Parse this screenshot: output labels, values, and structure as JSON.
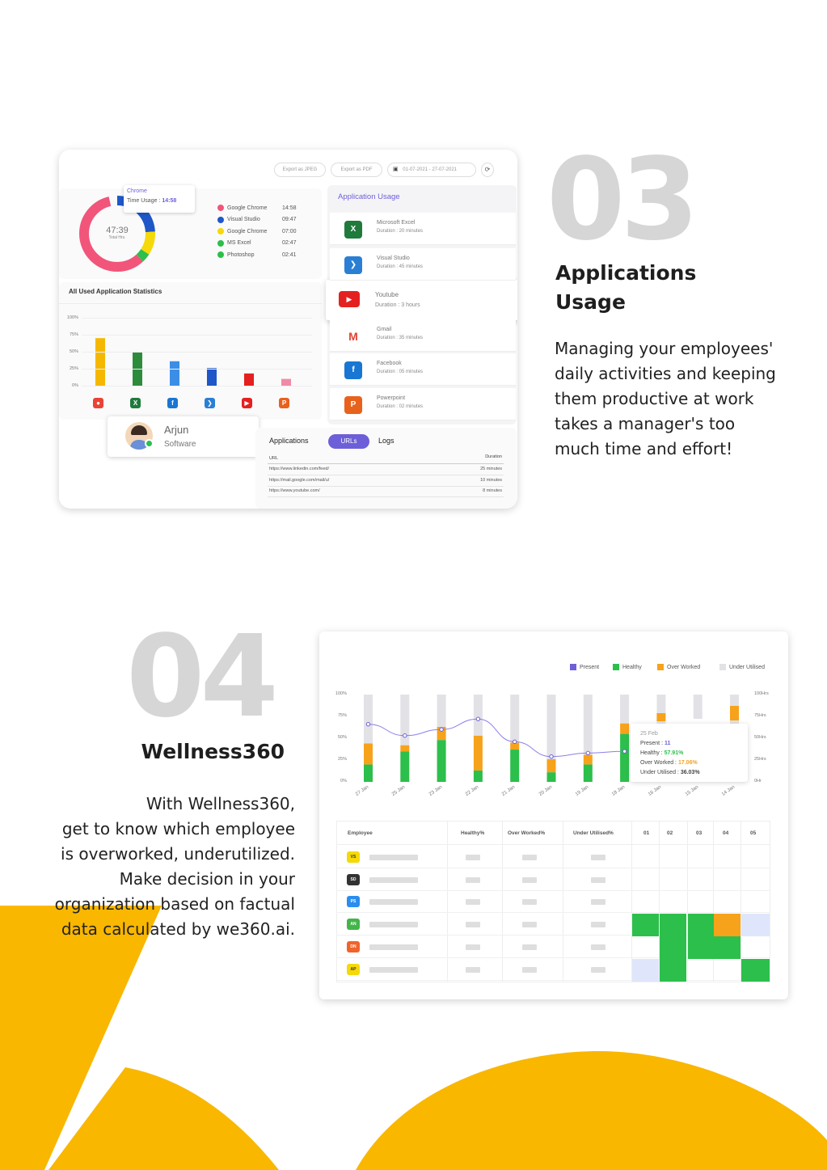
{
  "colors": {
    "accent": "#f9b700",
    "brand_purple": "#6d5fd8",
    "watermark": "#d6d6d6"
  },
  "section3": {
    "number": "03",
    "title_line1": "Applications",
    "title_line2": "Usage",
    "desc_lines": [
      "Managing your employees'",
      "daily activities and keeping",
      "them productive at work",
      "takes a manager's too",
      "much time and effort!"
    ]
  },
  "section4": {
    "number": "04",
    "title": "Wellness360",
    "desc_lines": [
      "With Wellness360,",
      "get to know which employee",
      "is overworked, underutilized.",
      "Make decision in your",
      "organization based on factual",
      "data calculated by we360.ai."
    ]
  },
  "dash1": {
    "export_jpeg": "Export as JPEG",
    "export_pdf": "Export as PDF",
    "date_range": "01-07-2021 - 27-07-2021",
    "tooltip_app": "Chrome",
    "tooltip_label": "Time Usage :",
    "tooltip_value": "14:58",
    "donut_total": "47:39",
    "donut_sub": "Total Hrs.",
    "legend": [
      {
        "name": "Google Chrome",
        "time": "14:58",
        "color": "#f2557a"
      },
      {
        "name": "Visual Studio",
        "time": "09:47",
        "color": "#1f57c8"
      },
      {
        "name": "Google Chrome",
        "time": "07:00",
        "color": "#f5d90a"
      },
      {
        "name": "MS Excel",
        "time": "02:47",
        "color": "#2cbf4b"
      },
      {
        "name": "Photoshop",
        "time": "02:41",
        "color": "#2cbf4b"
      }
    ],
    "stats_title": "All Used Application Statistics",
    "stats_axis": [
      "100%",
      "75%",
      "50%",
      "25%",
      "0%"
    ],
    "stats_values": [
      70,
      50,
      36,
      26,
      18,
      10
    ],
    "stats_colors": [
      "#f5b800",
      "#2d8c3c",
      "#3b8ee6",
      "#1f57c8",
      "#e52020",
      "#f08aa8"
    ],
    "stats_icons": [
      "chrome-icon",
      "excel-icon",
      "facebook-icon",
      "vscode-icon",
      "youtube-icon",
      "powerpoint-icon"
    ],
    "usage_title": "Application Usage",
    "apps": [
      {
        "name": "Microsoft Excel",
        "duration": "Duration : 20 minutes",
        "icon": "excel-icon",
        "color": "#1f7a3c",
        "glyph": "X"
      },
      {
        "name": "Visual Studio",
        "duration": "Duration : 45 minutes",
        "icon": "vscode-icon",
        "color": "#2a7fd4",
        "glyph": "❯"
      },
      {
        "name": "Youtube",
        "duration": "Duration : 3 hours",
        "icon": "youtube-icon",
        "color": "#e52020",
        "glyph": "▶"
      },
      {
        "name": "Gmail",
        "duration": "Duration : 35 minutes",
        "icon": "gmail-icon",
        "color": "#e44134",
        "glyph": "M"
      },
      {
        "name": "Facebook",
        "duration": "Duration : 05 minutes",
        "icon": "facebook-icon",
        "color": "#1976d2",
        "glyph": "f"
      },
      {
        "name": "Powerpoint",
        "duration": "Duration : 02 minutes",
        "icon": "powerpoint-icon",
        "color": "#e8621c",
        "glyph": "P"
      }
    ],
    "user_name": "Arjun",
    "user_role": "Software",
    "tabs": [
      "Applications",
      "URLs",
      "Logs"
    ],
    "url_header": "URL",
    "dur_header": "Duration",
    "urls": [
      {
        "url": "https://www.linkedin.com/feed/",
        "duration": "25 minutes"
      },
      {
        "url": "https://mail.google.com/mail/u/",
        "duration": "10 minutes"
      },
      {
        "url": "https://www.youtube.com/",
        "duration": "8 minutes"
      }
    ]
  },
  "dash2": {
    "legend": [
      {
        "name": "Present",
        "color": "#6d5fd8"
      },
      {
        "name": "Healthy",
        "color": "#2cbf4b"
      },
      {
        "name": "Over Worked",
        "color": "#f7a21b"
      },
      {
        "name": "Under Utilised",
        "color": "#e2e2e6"
      }
    ],
    "left_axis": [
      "100%",
      "75%",
      "50%",
      "25%",
      "0%"
    ],
    "right_axis": [
      "100Hrs",
      "75Hrs",
      "50Hrs",
      "25Hrs",
      "0Hr"
    ],
    "x_labels": [
      "27 Jan",
      "25 Jan",
      "23 Jan",
      "22 Jan",
      "21 Jan",
      "20 Jan",
      "19 Jan",
      "18 Jan",
      "16 Jan",
      "15 Jan",
      "14 Jan"
    ],
    "tooltip_date": "25 Feb",
    "tooltip_present_label": "Present :",
    "tooltip_present": "11",
    "tooltip_healthy_label": "Healthy :",
    "tooltip_healthy": "57.91%",
    "tooltip_over_label": "Over Worked :",
    "tooltip_over": "17.06%",
    "tooltip_under_label": "Under Utilised :",
    "tooltip_under": "36.03%",
    "table_headers": [
      "Employee",
      "Healthy%",
      "Over Worked%",
      "Under Utilised%",
      "01",
      "02",
      "03",
      "04",
      "05"
    ],
    "employees": [
      {
        "initials": "VS",
        "color": "#f5d90a",
        "text": "#333"
      },
      {
        "initials": "SD",
        "color": "#333333",
        "text": "#fff"
      },
      {
        "initials": "PS",
        "color": "#2a8df0",
        "text": "#fff"
      },
      {
        "initials": "AN",
        "color": "#43b54a",
        "text": "#fff"
      },
      {
        "initials": "DN",
        "color": "#f0632b",
        "text": "#fff"
      },
      {
        "initials": "AP",
        "color": "#f5d90a",
        "text": "#333"
      }
    ]
  },
  "chart_data": [
    {
      "type": "bar",
      "title": "All Used Application Statistics",
      "categories": [
        "Chrome",
        "Excel",
        "Facebook",
        "Visual Studio",
        "Youtube",
        "Powerpoint"
      ],
      "values": [
        70,
        50,
        36,
        26,
        18,
        10
      ],
      "ylim": [
        0,
        100
      ],
      "ylabel": "",
      "xlabel": ""
    },
    {
      "type": "bar",
      "title": "",
      "categories": [
        "27 Jan",
        "25 Jan",
        "23 Jan",
        "22 Jan",
        "21 Jan",
        "20 Jan",
        "19 Jan",
        "18 Jan",
        "16 Jan",
        "15 Jan",
        "14 Jan"
      ],
      "series": [
        {
          "name": "Healthy",
          "values": [
            20,
            35,
            48,
            13,
            37,
            11,
            20,
            55,
            0,
            0,
            0
          ]
        },
        {
          "name": "Over Worked",
          "values": [
            24,
            7,
            15,
            40,
            8,
            15,
            11,
            12,
            0,
            0,
            0
          ]
        },
        {
          "name": "Under Utilised",
          "values": [
            56,
            58,
            37,
            47,
            55,
            74,
            69,
            33,
            0,
            0,
            0
          ]
        },
        {
          "name": "Present",
          "values": [
            66,
            53,
            60,
            72,
            46,
            29,
            33,
            35,
            0,
            0,
            0
          ]
        }
      ],
      "ylim": [
        0,
        100
      ]
    }
  ]
}
